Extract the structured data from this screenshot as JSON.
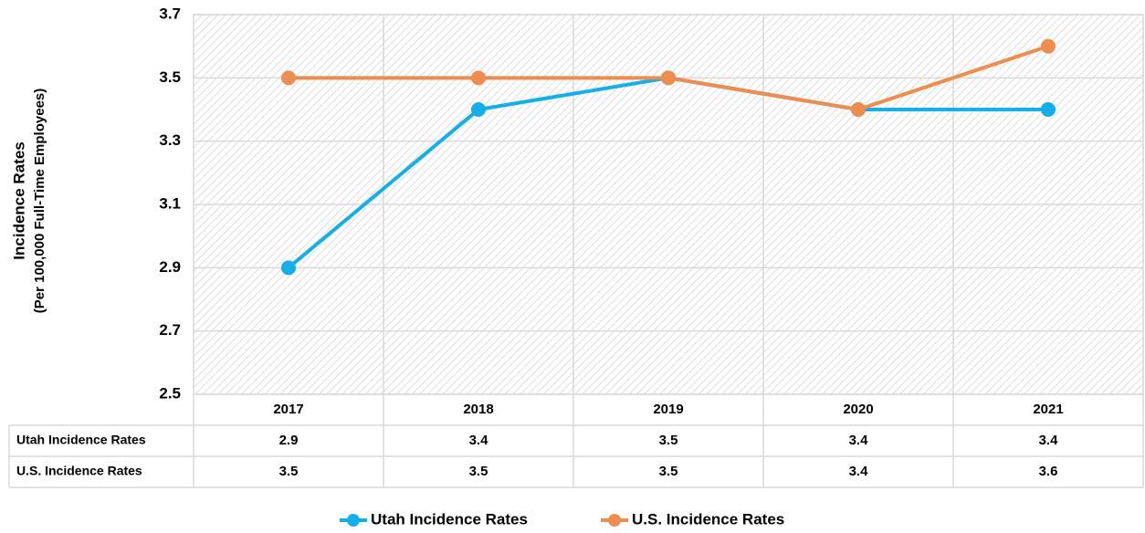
{
  "chart_data": {
    "type": "line",
    "y_label": [
      "Incidence Rates",
      "(Per 100,000 Full-Time Employees)"
    ],
    "categories": [
      "2017",
      "2018",
      "2019",
      "2020",
      "2021"
    ],
    "series": [
      {
        "name": "Utah Incidence Rates",
        "color": "#14aee8",
        "values": [
          2.9,
          3.4,
          3.5,
          3.4,
          3.4
        ]
      },
      {
        "name": "U.S. Incidence Rates",
        "color": "#ef8d4e",
        "values": [
          3.5,
          3.5,
          3.5,
          3.4,
          3.6
        ]
      }
    ],
    "ylim": [
      2.5,
      3.7
    ],
    "yticks": [
      2.5,
      2.7,
      2.9,
      3.1,
      3.3,
      3.5,
      3.7
    ],
    "grid": true,
    "legend": "bottom"
  }
}
